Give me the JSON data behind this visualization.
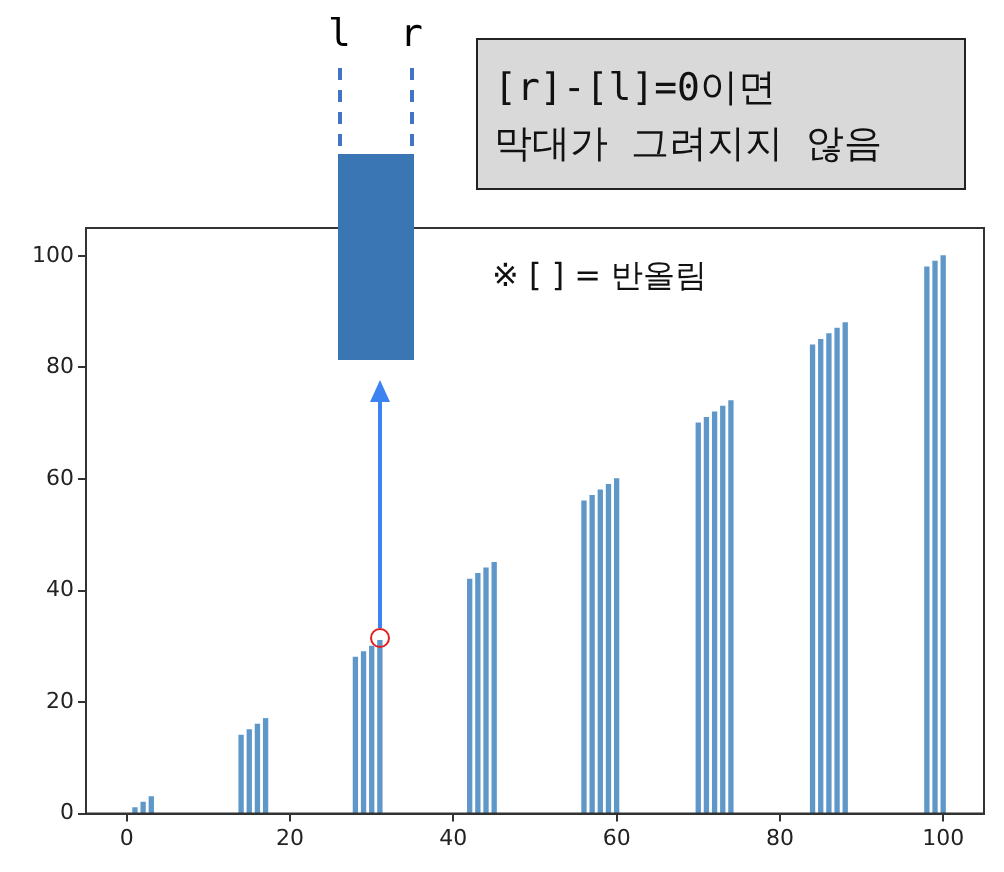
{
  "chart_data": {
    "type": "bar",
    "x": [
      1,
      2,
      3,
      14,
      15,
      16,
      17,
      28,
      29,
      30,
      31,
      42,
      43,
      44,
      45,
      56,
      57,
      58,
      59,
      60,
      70,
      71,
      72,
      73,
      74,
      84,
      85,
      86,
      87,
      88,
      98,
      99,
      100
    ],
    "values": [
      1,
      2,
      3,
      14,
      15,
      16,
      17,
      28,
      29,
      30,
      31,
      42,
      43,
      44,
      45,
      56,
      57,
      58,
      59,
      60,
      70,
      71,
      72,
      73,
      74,
      84,
      85,
      86,
      87,
      88,
      98,
      99,
      100
    ],
    "color": "#5f97c9",
    "xlim": [
      -5,
      105
    ],
    "xticks": [
      0,
      20,
      40,
      60,
      80,
      100
    ],
    "ylim": [
      0,
      105
    ],
    "yticks": [
      0,
      20,
      40,
      60,
      80,
      100
    ],
    "grid": false,
    "legend": false,
    "annotations": [
      "※ [ ] = 반올림",
      "[r]-[l]=0이면\n막대가 그려지지 않음",
      "l",
      "r"
    ]
  }
}
